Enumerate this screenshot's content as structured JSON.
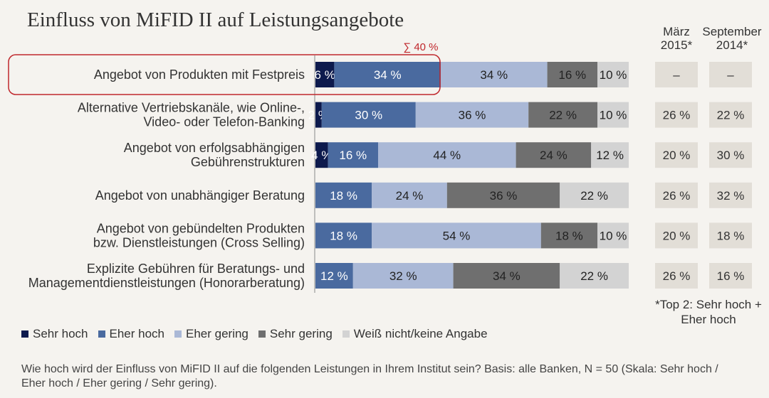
{
  "title": "Einfluss von MiFID II auf Leistungsangebote",
  "chart_data": {
    "type": "bar",
    "orientation": "horizontal-stacked-100",
    "categories": [
      [
        "Angebot von Produkten mit Festpreis"
      ],
      [
        "Alternative Vertriebskanäle, wie Online-,",
        "Video- oder Telefon-Banking"
      ],
      [
        "Angebot von erfolgsabhängigen",
        "Gebührenstrukturen"
      ],
      [
        "Angebot von unabhängiger Beratung"
      ],
      [
        "Angebot von gebündelten Produkten",
        "bzw. Dienstleistungen (Cross Selling)"
      ],
      [
        "Explizite Gebühren für Beratungs- und",
        "Managementdienstleistungen (Honorarberatung)"
      ]
    ],
    "series": [
      {
        "name": "Sehr hoch",
        "color": "#0d1a4d",
        "values": [
          6,
          2,
          4,
          0,
          0,
          0
        ]
      },
      {
        "name": "Eher hoch",
        "color": "#4a6a9f",
        "values": [
          34,
          30,
          16,
          18,
          18,
          12
        ]
      },
      {
        "name": "Eher gering",
        "color": "#aab8d6",
        "values": [
          34,
          36,
          44,
          24,
          54,
          32
        ]
      },
      {
        "name": "Sehr gering",
        "color": "#6f6f6f",
        "values": [
          16,
          22,
          24,
          36,
          18,
          34
        ]
      },
      {
        "name": "Weiß nicht/keine Angabe",
        "color": "#d3d3d3",
        "values": [
          10,
          10,
          12,
          22,
          10,
          22
        ]
      }
    ],
    "label_suffix": " %",
    "highlight": {
      "row": 0,
      "label": "∑ 40 %",
      "color": "#c0282d"
    },
    "comparison_columns": [
      {
        "header": [
          "März",
          "2015*"
        ],
        "values": [
          "–",
          "26 %",
          "20 %",
          "26 %",
          "20 %",
          "26 %"
        ]
      },
      {
        "header": [
          "September",
          "2014*"
        ],
        "values": [
          "–",
          "22 %",
          "30 %",
          "32 %",
          "18 %",
          "16 %"
        ]
      }
    ],
    "comparison_box_color": "#e2ded7",
    "xlim": [
      0,
      100
    ]
  },
  "footnote": "*Top 2: Sehr hoch + Eher hoch",
  "question": "Wie hoch wird der Einfluss von MiFID II auf die folgenden Leistungen in Ihrem Institut sein? Basis: alle Banken, N = 50 (Skala: Sehr hoch / Eher hoch / Eher gering / Sehr gering)."
}
